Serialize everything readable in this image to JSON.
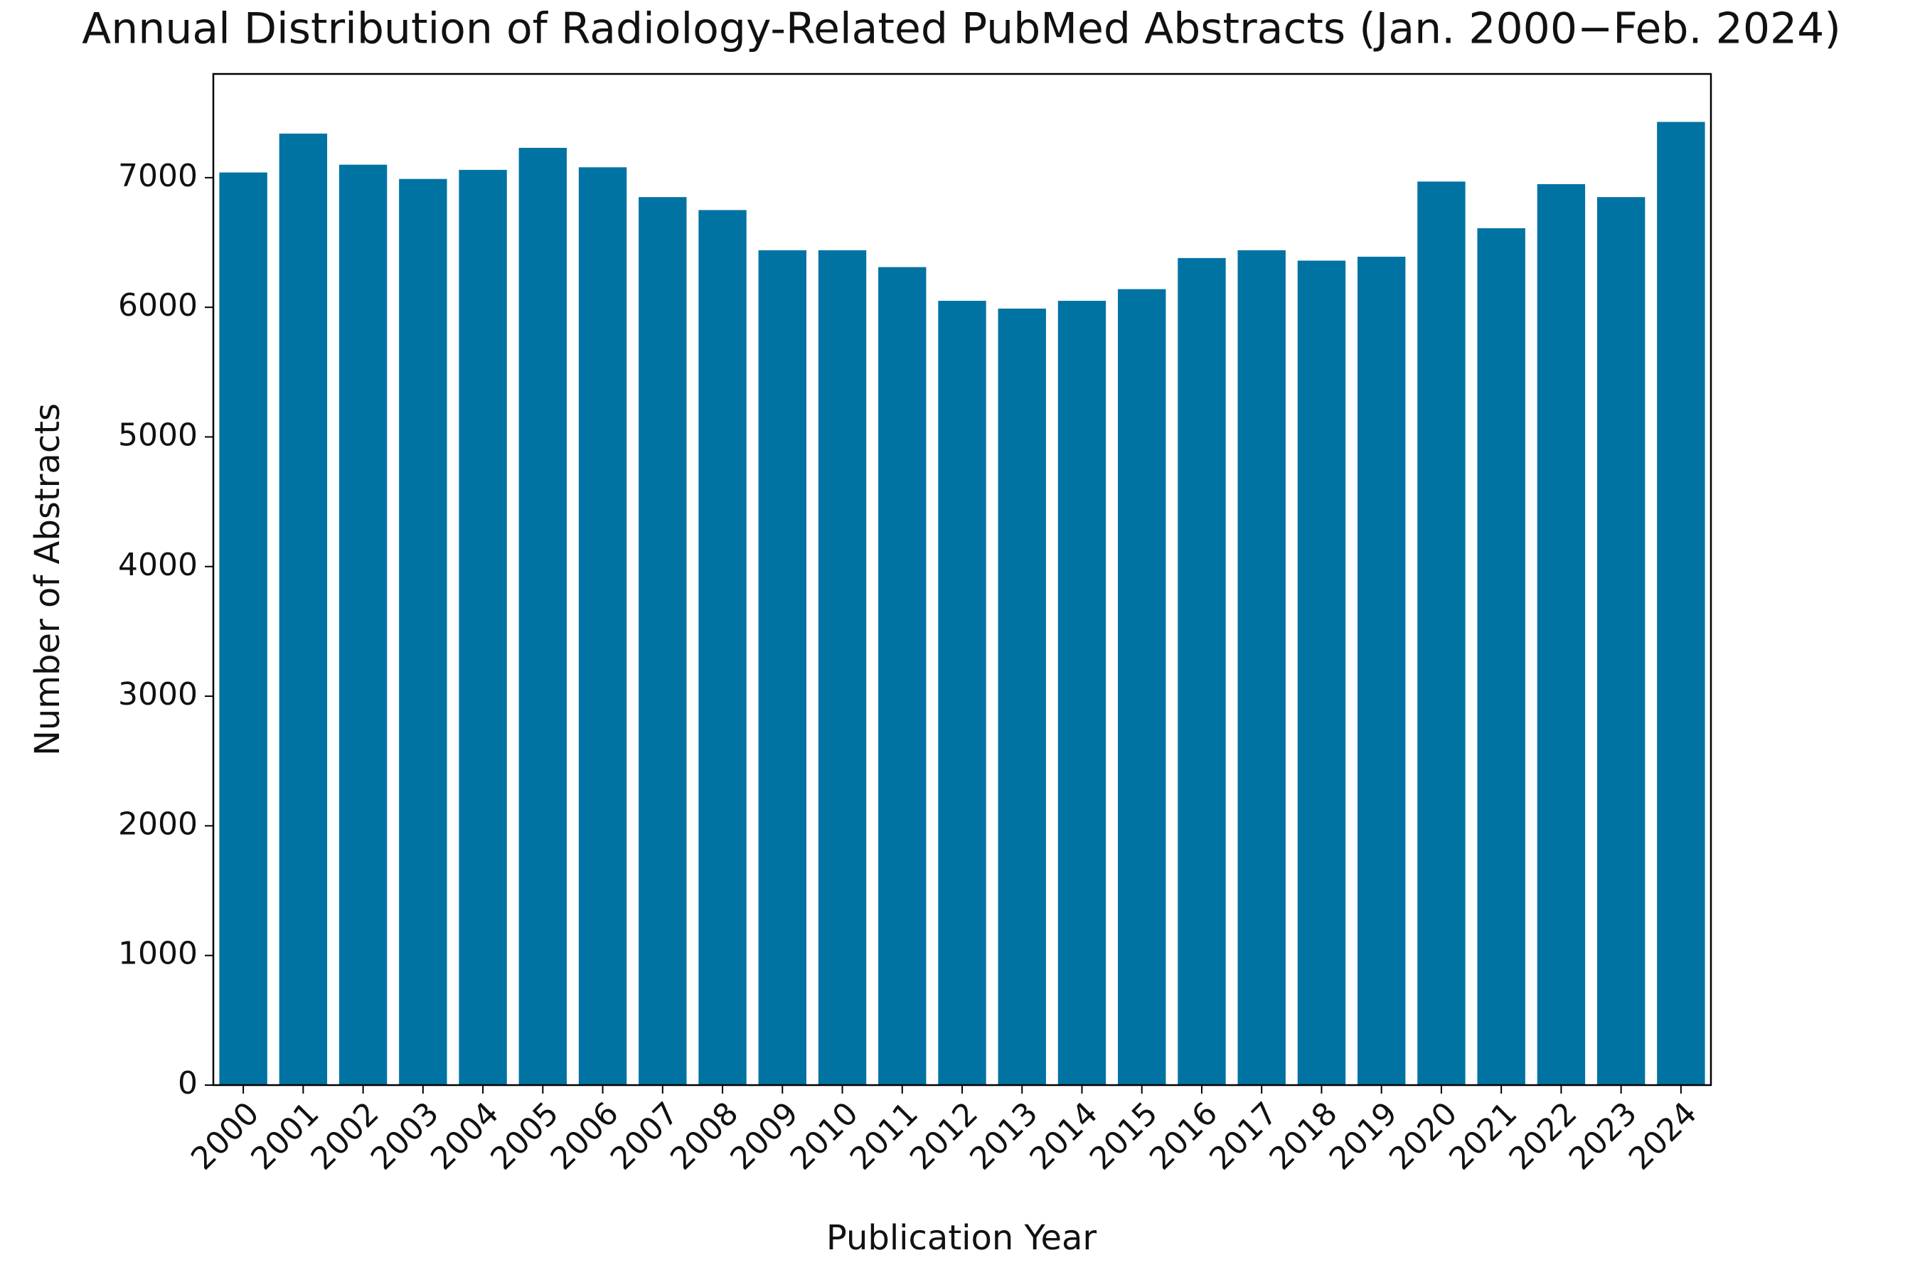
{
  "chart_data": {
    "type": "bar",
    "title": "Annual Distribution of Radiology-Related PubMed Abstracts (Jan. 2000−Feb. 2024)",
    "x_label": "Publication Year",
    "y_label": "Number of Abstracts",
    "categories": [
      "2000",
      "2001",
      "2002",
      "2003",
      "2004",
      "2005",
      "2006",
      "2007",
      "2008",
      "2009",
      "2010",
      "2011",
      "2012",
      "2013",
      "2014",
      "2015",
      "2016",
      "2017",
      "2018",
      "2019",
      "2020",
      "2021",
      "2022",
      "2023",
      "2024"
    ],
    "values": [
      7040,
      7340,
      7100,
      6990,
      7060,
      7230,
      7080,
      6850,
      6750,
      6440,
      6440,
      6310,
      6050,
      5990,
      6050,
      6140,
      6380,
      6440,
      6360,
      6390,
      6970,
      6610,
      6950,
      6850,
      7430
    ],
    "color": "#0173a3",
    "ylim": [
      0,
      7800
    ],
    "yticks": [
      0,
      1000,
      2000,
      3000,
      4000,
      5000,
      6000,
      7000
    ],
    "grid": false
  }
}
